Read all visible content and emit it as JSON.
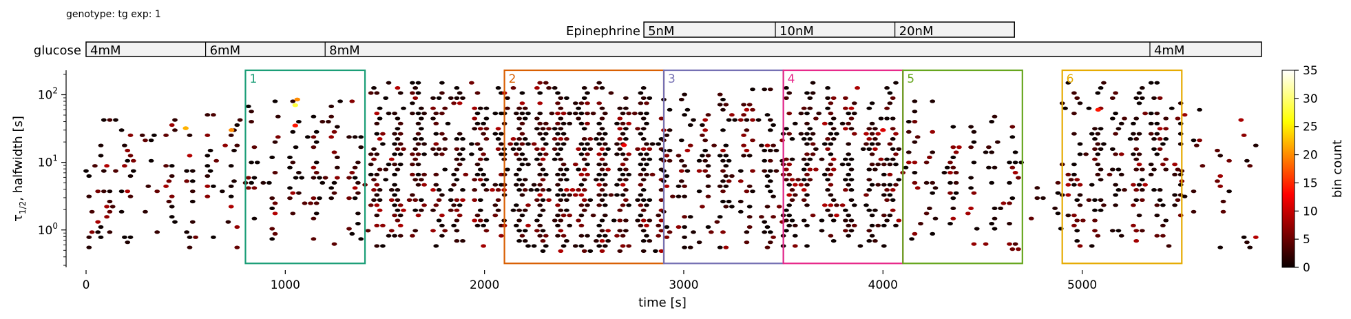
{
  "header": {
    "info": "genotype: tg  exp: 1"
  },
  "epinephrine_bar": {
    "label": "Epinephrine",
    "segments": [
      {
        "label": "5nM",
        "start": 2800,
        "end": 3460
      },
      {
        "label": "10nM",
        "start": 3460,
        "end": 4060
      },
      {
        "label": "20nM",
        "start": 4060,
        "end": 4660
      }
    ]
  },
  "glucose_bar": {
    "label": "glucose",
    "segments": [
      {
        "label": "4mM",
        "start": 0,
        "end": 600
      },
      {
        "label": "6mM",
        "start": 600,
        "end": 1200
      },
      {
        "label": "8mM",
        "start": 1200,
        "end": 5340
      },
      {
        "label": "4mM",
        "start": 5340,
        "end": 5900
      }
    ]
  },
  "chart_data": {
    "type": "heatmap",
    "subtype": "hexbin",
    "xlabel": "time [s]",
    "ylabel_main": "τ",
    "ylabel_sub": "1/2",
    "ylabel_rest": ", halfwidth [s]",
    "xlim": [
      0,
      5900
    ],
    "ylim": [
      0.28,
      230
    ],
    "yscale": "log",
    "xticks": [
      0,
      1000,
      2000,
      3000,
      4000,
      5000
    ],
    "yticks": [
      {
        "value": 1,
        "base": "10",
        "exp": "0"
      },
      {
        "value": 10,
        "base": "10",
        "exp": "1"
      },
      {
        "value": 100,
        "base": "10",
        "exp": "2"
      }
    ],
    "colorbar": {
      "label": "bin count",
      "colormap": "hot",
      "range": [
        0,
        35
      ],
      "ticks": [
        0,
        5,
        10,
        15,
        20,
        25,
        30,
        35
      ]
    },
    "density_regions": [
      {
        "x0": 0,
        "x1": 800,
        "ylo": 0.5,
        "yhi": 60,
        "density": 0.35
      },
      {
        "x0": 800,
        "x1": 1400,
        "ylo": 0.6,
        "yhi": 80,
        "density": 0.4
      },
      {
        "x0": 1400,
        "x1": 2100,
        "ylo": 0.5,
        "yhi": 150,
        "density": 0.75
      },
      {
        "x0": 2100,
        "x1": 2900,
        "ylo": 0.45,
        "yhi": 150,
        "density": 1.0
      },
      {
        "x0": 2900,
        "x1": 3500,
        "ylo": 0.5,
        "yhi": 120,
        "density": 0.55
      },
      {
        "x0": 3500,
        "x1": 4100,
        "ylo": 0.5,
        "yhi": 150,
        "density": 0.75
      },
      {
        "x0": 4100,
        "x1": 4700,
        "ylo": 0.5,
        "yhi": 80,
        "density": 0.35
      },
      {
        "x0": 4700,
        "x1": 4900,
        "ylo": 0.6,
        "yhi": 20,
        "density": 0.2
      },
      {
        "x0": 4900,
        "x1": 5500,
        "ylo": 0.45,
        "yhi": 150,
        "density": 0.55
      },
      {
        "x0": 5500,
        "x1": 5880,
        "ylo": 0.5,
        "yhi": 60,
        "density": 0.25
      }
    ],
    "hotspots": [
      {
        "x": 1050,
        "y": 70,
        "count": 28
      },
      {
        "x": 1060,
        "y": 85,
        "count": 20
      },
      {
        "x": 500,
        "y": 32,
        "count": 22
      },
      {
        "x": 730,
        "y": 30,
        "count": 20
      },
      {
        "x": 1050,
        "y": 35,
        "count": 14
      },
      {
        "x": 5080,
        "y": 60,
        "count": 14
      },
      {
        "x": 4000,
        "y": 30,
        "count": 11
      },
      {
        "x": 2700,
        "y": 18,
        "count": 12
      }
    ],
    "boxes": [
      {
        "label": "1",
        "x0": 800,
        "x1": 1400,
        "color": "#1b9e77"
      },
      {
        "label": "2",
        "x0": 2100,
        "x1": 2900,
        "color": "#d95f02"
      },
      {
        "label": "3",
        "x0": 2900,
        "x1": 3500,
        "color": "#7570b3"
      },
      {
        "label": "4",
        "x0": 3500,
        "x1": 4100,
        "color": "#e7298a"
      },
      {
        "label": "5",
        "x0": 4100,
        "x1": 4700,
        "color": "#66a61e"
      },
      {
        "label": "6",
        "x0": 4900,
        "x1": 5500,
        "color": "#e6ab02"
      }
    ],
    "box_y_range": [
      0.32,
      230
    ]
  }
}
